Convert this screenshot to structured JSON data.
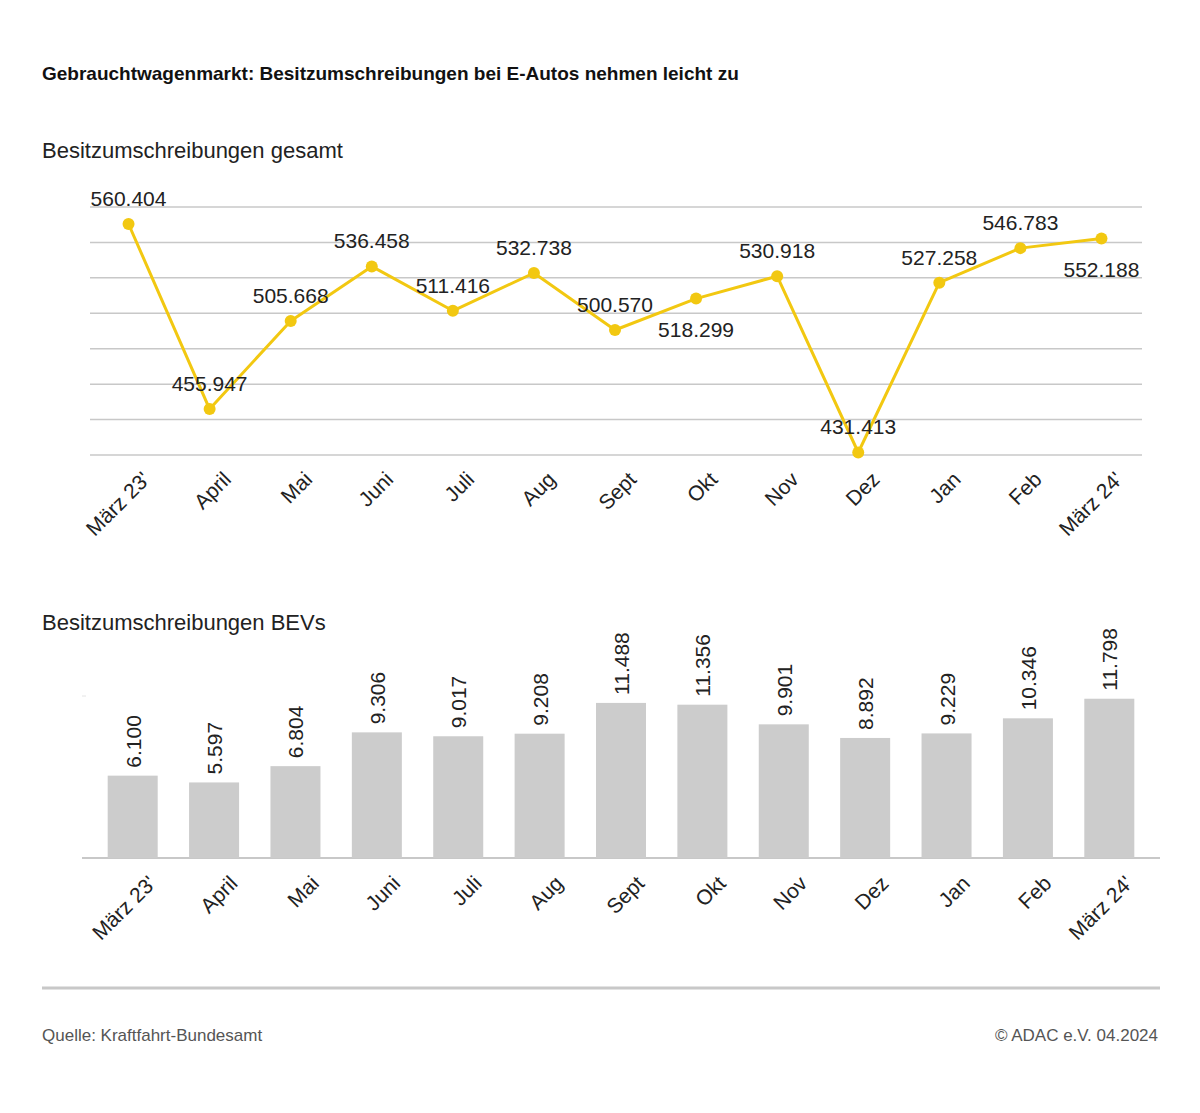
{
  "header": {
    "title": "Gebrauchtwagenmarkt: Besitzumschreibungen bei E-Autos nehmen leicht zu"
  },
  "chart_data": [
    {
      "type": "line",
      "title": "Besitzumschreibungen gesamt",
      "categories": [
        "März 23'",
        "April",
        "Mai",
        "Juni",
        "Juli",
        "Aug",
        "Sept",
        "Okt",
        "Nov",
        "Dez",
        "Jan",
        "Feb",
        "März 24'"
      ],
      "values": [
        560404,
        455947,
        505668,
        536458,
        511416,
        532738,
        500570,
        518299,
        530918,
        431413,
        527258,
        546783,
        552188
      ],
      "value_labels": [
        "560.404",
        "455.947",
        "505.668",
        "536.458",
        "511.416",
        "532.738",
        "500.570",
        "518.299",
        "530.918",
        "431.413",
        "527.258",
        "546.783",
        "552.188"
      ],
      "color": "#f2c811",
      "marker": "circle",
      "ylim": [
        430000,
        570000
      ],
      "yticks": [
        430000,
        450000,
        470000,
        490000,
        510000,
        530000,
        550000,
        570000
      ],
      "grid": true,
      "data_labels": true,
      "tick_labels": "x"
    },
    {
      "type": "bar",
      "title": "Besitzumschreibungen BEVs",
      "categories": [
        "März 23'",
        "April",
        "Mai",
        "Juni",
        "Juli",
        "Aug",
        "Sept",
        "Okt",
        "Nov",
        "Dez",
        "Jan",
        "Feb",
        "März 24'"
      ],
      "values": [
        6100,
        5597,
        6804,
        9306,
        9017,
        9208,
        11488,
        11356,
        9901,
        8892,
        9229,
        10346,
        11798
      ],
      "value_labels": [
        "6.100",
        "5.597",
        "6.804",
        "9.306",
        "9.017",
        "9.208",
        "11.488",
        "11.356",
        "9.901",
        "8.892",
        "9.229",
        "10.346",
        "11.798"
      ],
      "color": "#cccccc",
      "ylim": [
        0,
        12000
      ],
      "yticks": [
        0,
        12000
      ],
      "grid": false,
      "data_labels": true,
      "tick_labels": "x"
    }
  ],
  "footer": {
    "source": "Quelle: Kraftfahrt-Bundesamt",
    "copyright": "© ADAC e.V. 04.2024"
  }
}
